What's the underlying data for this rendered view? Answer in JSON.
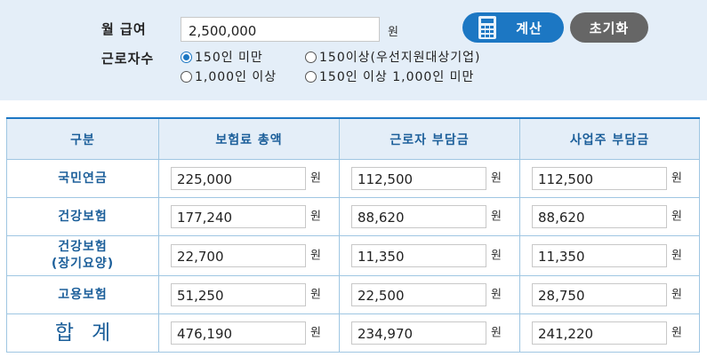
{
  "form": {
    "salary_label": "월 급여",
    "salary_value": "2,500,000",
    "salary_unit": "원",
    "workers_label": "근로자수",
    "calc_label": "계산",
    "reset_label": "초기화",
    "radio_options": [
      {
        "label": "150인 미만",
        "checked": true
      },
      {
        "label": "150이상(우선지원대상기업)",
        "checked": false
      },
      {
        "label": "1,000인 이상",
        "checked": false
      },
      {
        "label": "150인 이상 1,000인 미만",
        "checked": false
      }
    ]
  },
  "table": {
    "headers": [
      "구분",
      "보험료 총액",
      "근로자 부담금",
      "사업주 부담금"
    ],
    "unit": "원",
    "rows": [
      {
        "name": "국민연금",
        "total": "225,000",
        "employee": "112,500",
        "employer": "112,500"
      },
      {
        "name": "건강보험",
        "total": "177,240",
        "employee": "88,620",
        "employer": "88,620"
      },
      {
        "name": "건강보험",
        "name2": "(장기요양)",
        "total": "22,700",
        "employee": "11,350",
        "employer": "11,350"
      },
      {
        "name": "고용보험",
        "total": "51,250",
        "employee": "22,500",
        "employer": "28,750"
      },
      {
        "name": "합계",
        "total": "476,190",
        "employee": "234,970",
        "employer": "241,220"
      }
    ]
  },
  "colors": {
    "accent": "#1c77c3",
    "panel": "#e4eef8",
    "reset": "#666666"
  }
}
